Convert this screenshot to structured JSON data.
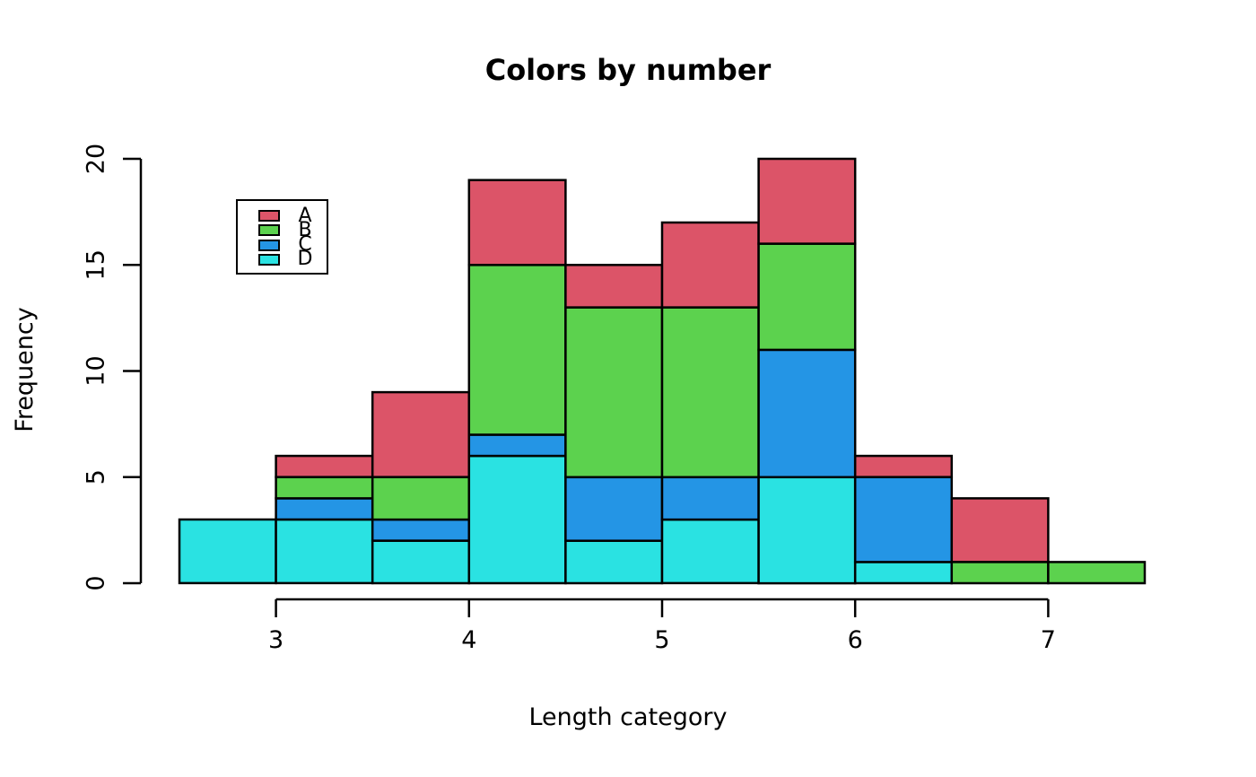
{
  "chart_data": {
    "type": "bar",
    "subtype": "stacked-histogram",
    "title": "Colors by number",
    "xlabel": "Length category",
    "ylabel": "Frequency",
    "xlim": [
      2.5,
      7.5
    ],
    "ylim": [
      0,
      20
    ],
    "x_ticks": [
      "3",
      "4",
      "5",
      "6",
      "7"
    ],
    "x_tick_values": [
      3,
      4,
      5,
      6,
      7
    ],
    "y_ticks": [
      "0",
      "5",
      "10",
      "15",
      "20"
    ],
    "y_tick_values": [
      0,
      5,
      10,
      15,
      20
    ],
    "bin_edges": [
      2.5,
      3,
      3.5,
      4,
      4.5,
      5,
      5.5,
      6,
      6.5,
      7,
      7.5
    ],
    "grid": false,
    "background_color": "#ffffff",
    "axis_color": "#000000",
    "bar_border_color": "#000000",
    "series": [
      {
        "name": "D",
        "color": "#2AE2E2",
        "values": [
          3,
          3,
          2,
          6,
          2,
          3,
          5,
          1,
          0,
          0
        ]
      },
      {
        "name": "C",
        "color": "#2495E5",
        "values": [
          0,
          1,
          1,
          1,
          3,
          2,
          6,
          4,
          0,
          0
        ]
      },
      {
        "name": "B",
        "color": "#5CD24E",
        "values": [
          0,
          1,
          2,
          8,
          8,
          8,
          5,
          0,
          1,
          1
        ]
      },
      {
        "name": "A",
        "color": "#DC5468",
        "values": [
          0,
          1,
          4,
          4,
          2,
          4,
          4,
          1,
          3,
          0
        ]
      }
    ],
    "bar_totals": [
      3,
      6,
      9,
      19,
      15,
      17,
      20,
      6,
      4,
      1
    ],
    "legend": {
      "position": "top-left-inset",
      "items": [
        {
          "label": "A",
          "color": "#DC5468"
        },
        {
          "label": "B",
          "color": "#5CD24E"
        },
        {
          "label": "C",
          "color": "#2495E5"
        },
        {
          "label": "D",
          "color": "#2AE2E2"
        }
      ]
    }
  }
}
